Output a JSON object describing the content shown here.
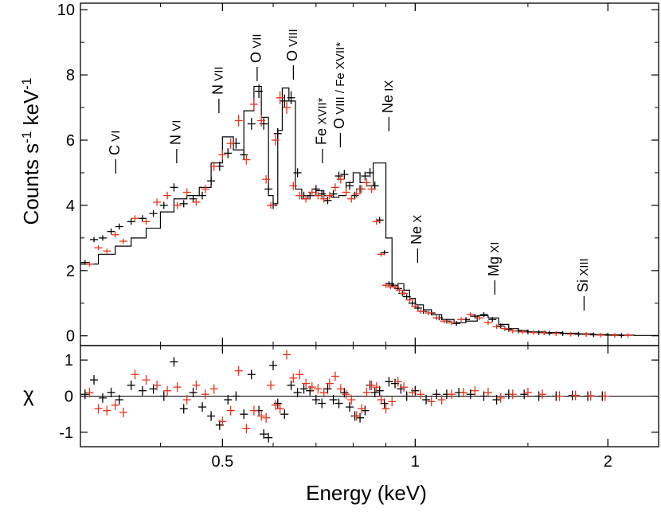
{
  "chart_data": [
    {
      "type": "line",
      "panel": "top",
      "description": "X-ray spectrum (two datasets) with step model",
      "ylabel": "Counts s-1 keV-1",
      "ylabel_parts": {
        "base": "Counts s",
        "exp1": "-1",
        "mid": " keV",
        "exp2": "-1"
      },
      "xlabel": "Energy (keV)",
      "xscale": "log",
      "xlim": [
        0.3,
        2.4
      ],
      "ylim": [
        -0.3,
        10.2
      ],
      "yticks": [
        0,
        2,
        4,
        6,
        8,
        10
      ],
      "ytick_labels": [
        "0",
        "2",
        "4",
        "6",
        "8",
        "10"
      ],
      "series": [
        {
          "name": "data-black",
          "color": "#000000",
          "x": [
            0.305,
            0.315,
            0.325,
            0.335,
            0.345,
            0.36,
            0.375,
            0.39,
            0.405,
            0.42,
            0.435,
            0.45,
            0.465,
            0.48,
            0.495,
            0.51,
            0.525,
            0.54,
            0.555,
            0.57,
            0.58,
            0.59,
            0.6,
            0.61,
            0.625,
            0.64,
            0.655,
            0.67,
            0.685,
            0.7,
            0.715,
            0.73,
            0.745,
            0.76,
            0.775,
            0.79,
            0.805,
            0.82,
            0.835,
            0.85,
            0.865,
            0.88,
            0.895,
            0.91,
            0.925,
            0.94,
            0.955,
            0.97,
            0.99,
            1.01,
            1.03,
            1.06,
            1.09,
            1.12,
            1.16,
            1.2,
            1.24,
            1.28,
            1.32,
            1.36,
            1.4,
            1.45,
            1.5,
            1.56,
            1.62,
            1.7,
            1.8,
            1.9,
            2.0,
            2.1
          ],
          "y": [
            2.25,
            2.95,
            3.0,
            3.2,
            3.35,
            3.5,
            3.6,
            3.75,
            4.0,
            4.55,
            4.05,
            4.2,
            4.3,
            4.75,
            5.2,
            5.6,
            5.9,
            5.55,
            6.5,
            7.5,
            6.5,
            4.5,
            4.0,
            6.2,
            7.2,
            7.3,
            5.0,
            4.3,
            4.3,
            4.5,
            4.35,
            4.15,
            4.35,
            4.9,
            4.95,
            4.6,
            4.3,
            4.5,
            4.9,
            5.0,
            4.6,
            3.55,
            2.55,
            1.6,
            1.55,
            1.45,
            1.3,
            1.2,
            1.0,
            0.85,
            0.75,
            0.7,
            0.55,
            0.45,
            0.38,
            0.5,
            0.6,
            0.65,
            0.5,
            0.3,
            0.2,
            0.15,
            0.12,
            0.1,
            0.08,
            0.07,
            0.05,
            0.03,
            0.02,
            0.01
          ]
        },
        {
          "name": "data-red",
          "color": "#e8321c",
          "x": [
            0.31,
            0.32,
            0.33,
            0.34,
            0.35,
            0.365,
            0.38,
            0.395,
            0.41,
            0.425,
            0.44,
            0.455,
            0.47,
            0.485,
            0.5,
            0.515,
            0.53,
            0.545,
            0.56,
            0.575,
            0.585,
            0.595,
            0.605,
            0.615,
            0.63,
            0.645,
            0.66,
            0.675,
            0.69,
            0.705,
            0.72,
            0.735,
            0.75,
            0.765,
            0.78,
            0.795,
            0.81,
            0.825,
            0.84,
            0.855,
            0.87,
            0.885,
            0.9,
            0.915,
            0.93,
            0.945,
            0.96,
            0.98,
            1.0,
            1.02,
            1.05,
            1.08,
            1.11,
            1.14,
            1.18,
            1.22,
            1.26,
            1.3,
            1.34,
            1.38,
            1.42,
            1.47,
            1.53,
            1.59,
            1.66,
            1.75,
            1.85,
            1.95,
            2.05,
            2.15
          ],
          "y": [
            2.2,
            2.7,
            2.6,
            3.1,
            2.9,
            3.6,
            3.5,
            4.1,
            4.3,
            4.0,
            4.4,
            4.1,
            4.5,
            5.2,
            5.55,
            5.9,
            6.6,
            5.4,
            7.1,
            6.6,
            4.8,
            4.0,
            6.0,
            7.3,
            7.0,
            4.6,
            4.3,
            4.2,
            4.4,
            4.3,
            4.2,
            4.3,
            4.55,
            4.8,
            4.4,
            4.2,
            4.35,
            4.5,
            4.7,
            4.5,
            3.5,
            2.5,
            1.55,
            1.5,
            1.5,
            1.4,
            1.3,
            1.1,
            0.9,
            0.75,
            0.7,
            0.55,
            0.45,
            0.4,
            0.5,
            0.65,
            0.55,
            0.4,
            0.28,
            0.22,
            0.15,
            0.12,
            0.1,
            0.09,
            0.07,
            0.05,
            0.04,
            0.02,
            0.01,
            0.01
          ]
        },
        {
          "name": "model",
          "color": "#000000",
          "x": [
            0.3,
            0.32,
            0.34,
            0.36,
            0.38,
            0.4,
            0.42,
            0.44,
            0.46,
            0.48,
            0.5,
            0.52,
            0.54,
            0.56,
            0.575,
            0.59,
            0.6,
            0.61,
            0.62,
            0.635,
            0.65,
            0.665,
            0.68,
            0.7,
            0.72,
            0.74,
            0.76,
            0.78,
            0.8,
            0.82,
            0.84,
            0.86,
            0.88,
            0.9,
            0.92,
            0.94,
            0.96,
            0.98,
            1.0,
            1.03,
            1.06,
            1.1,
            1.15,
            1.2,
            1.25,
            1.3,
            1.35,
            1.4,
            1.45,
            1.5,
            1.6,
            1.7,
            1.8,
            1.9,
            2.0,
            2.1,
            2.2,
            2.4
          ],
          "y": [
            2.2,
            2.5,
            2.75,
            3.0,
            3.3,
            3.8,
            4.2,
            4.3,
            4.55,
            5.3,
            6.1,
            5.7,
            6.9,
            7.65,
            6.7,
            4.3,
            4.05,
            6.3,
            7.6,
            7.2,
            4.5,
            4.2,
            4.3,
            4.45,
            4.3,
            4.25,
            4.3,
            4.7,
            5.0,
            4.7,
            4.6,
            5.3,
            5.3,
            3.0,
            1.5,
            1.6,
            1.4,
            1.15,
            0.95,
            0.8,
            0.65,
            0.5,
            0.4,
            0.45,
            0.62,
            0.55,
            0.35,
            0.22,
            0.16,
            0.12,
            0.1,
            0.08,
            0.06,
            0.04,
            0.03,
            0.02,
            0.01,
            0.0
          ]
        }
      ],
      "annotations": [
        {
          "label_parts": [
            "C",
            " VI"
          ],
          "x": 0.345
        },
        {
          "label_parts": [
            "N",
            " VI"
          ],
          "x": 0.43
        },
        {
          "label_parts": [
            "N",
            " VII"
          ],
          "x": 0.5
        },
        {
          "label_parts": [
            "O",
            " VII"
          ],
          "x": 0.574
        },
        {
          "label_parts": [
            "O",
            " VIII"
          ],
          "x": 0.654
        },
        {
          "label_parts": [
            "Fe",
            " XVII*"
          ],
          "x": 0.726
        },
        {
          "label_parts": [
            "O",
            " VIII / Fe XVII*"
          ],
          "x": 0.774
        },
        {
          "label_parts": [
            "Ne",
            " IX"
          ],
          "x": 0.922
        },
        {
          "label_parts": [
            "Ne",
            " X"
          ],
          "x": 1.022
        },
        {
          "label_parts": [
            "Mg",
            " XI"
          ],
          "x": 1.35
        },
        {
          "label_parts": [
            "Si",
            " XIII"
          ],
          "x": 1.86
        }
      ]
    },
    {
      "type": "scatter",
      "panel": "bottom",
      "description": "residuals",
      "ylabel": "χ",
      "xlabel": "Energy (keV)",
      "xscale": "log",
      "xlim": [
        0.3,
        2.4
      ],
      "ylim": [
        -1.4,
        1.4
      ],
      "yticks": [
        -1,
        0,
        1
      ],
      "ytick_labels": [
        "-1",
        "0",
        "1"
      ],
      "xticks": [
        0.5,
        1,
        2
      ],
      "xtick_labels": [
        "0.5",
        "1",
        "2"
      ],
      "series": [
        {
          "name": "resid-black",
          "color": "#000000",
          "x": [
            0.305,
            0.315,
            0.325,
            0.335,
            0.345,
            0.36,
            0.375,
            0.39,
            0.405,
            0.42,
            0.435,
            0.45,
            0.465,
            0.48,
            0.495,
            0.51,
            0.525,
            0.54,
            0.555,
            0.57,
            0.58,
            0.59,
            0.6,
            0.61,
            0.625,
            0.64,
            0.655,
            0.67,
            0.685,
            0.7,
            0.715,
            0.73,
            0.745,
            0.76,
            0.775,
            0.79,
            0.805,
            0.82,
            0.835,
            0.85,
            0.865,
            0.88,
            0.895,
            0.91,
            0.93,
            0.95,
            0.97,
            1.0,
            1.04,
            1.08,
            1.12,
            1.17,
            1.22,
            1.28,
            1.34,
            1.4,
            1.48,
            1.56,
            1.66,
            1.76,
            1.86,
            1.96
          ],
          "y": [
            0.05,
            0.45,
            -0.05,
            0.1,
            -0.1,
            0.3,
            0.15,
            0.2,
            0.0,
            0.95,
            -0.35,
            0.1,
            -0.3,
            -0.55,
            -0.8,
            -0.1,
            0.0,
            -0.5,
            0.6,
            -0.4,
            -1.05,
            -1.15,
            0.85,
            -0.2,
            -0.5,
            0.3,
            0.1,
            0.2,
            0.15,
            -0.1,
            -0.2,
            0.2,
            -0.1,
            -0.2,
            0.1,
            -0.3,
            -0.55,
            -0.6,
            -0.4,
            0.3,
            0.1,
            0.15,
            -0.2,
            0.4,
            0.35,
            0.2,
            0.0,
            0.15,
            -0.1,
            0.05,
            0.05,
            0.1,
            0.05,
            0.0,
            -0.1,
            0.05,
            0.05,
            0.0,
            0.0,
            0.02,
            0.0,
            0.0
          ]
        },
        {
          "name": "resid-red",
          "color": "#e8321c",
          "x": [
            0.31,
            0.32,
            0.33,
            0.34,
            0.35,
            0.365,
            0.38,
            0.395,
            0.41,
            0.425,
            0.44,
            0.455,
            0.47,
            0.485,
            0.5,
            0.515,
            0.53,
            0.545,
            0.56,
            0.575,
            0.585,
            0.595,
            0.605,
            0.615,
            0.63,
            0.645,
            0.66,
            0.675,
            0.69,
            0.705,
            0.72,
            0.735,
            0.75,
            0.765,
            0.78,
            0.795,
            0.81,
            0.825,
            0.84,
            0.855,
            0.87,
            0.885,
            0.9,
            0.92,
            0.94,
            0.96,
            0.99,
            1.02,
            1.06,
            1.1,
            1.14,
            1.19,
            1.24,
            1.3,
            1.36,
            1.42,
            1.5,
            1.58,
            1.68,
            1.78,
            1.88,
            1.98
          ],
          "y": [
            0.1,
            -0.35,
            -0.4,
            -0.25,
            -0.45,
            0.6,
            0.45,
            0.3,
            0.15,
            0.25,
            -0.1,
            0.3,
            0.05,
            0.2,
            -0.7,
            -0.4,
            0.7,
            -0.9,
            -0.4,
            -0.55,
            -0.6,
            0.3,
            -0.25,
            -0.35,
            1.15,
            0.5,
            0.6,
            0.35,
            0.25,
            0.2,
            0.1,
            0.35,
            0.55,
            0.2,
            0.05,
            -0.1,
            -0.55,
            -0.35,
            0.1,
            0.3,
            0.25,
            -0.1,
            -0.35,
            -0.15,
            0.4,
            0.25,
            0.1,
            0.05,
            -0.15,
            -0.1,
            0.05,
            0.1,
            0.15,
            0.1,
            -0.05,
            0.05,
            0.1,
            0.05,
            0.0,
            0.02,
            0.01,
            0.0
          ]
        }
      ]
    }
  ]
}
